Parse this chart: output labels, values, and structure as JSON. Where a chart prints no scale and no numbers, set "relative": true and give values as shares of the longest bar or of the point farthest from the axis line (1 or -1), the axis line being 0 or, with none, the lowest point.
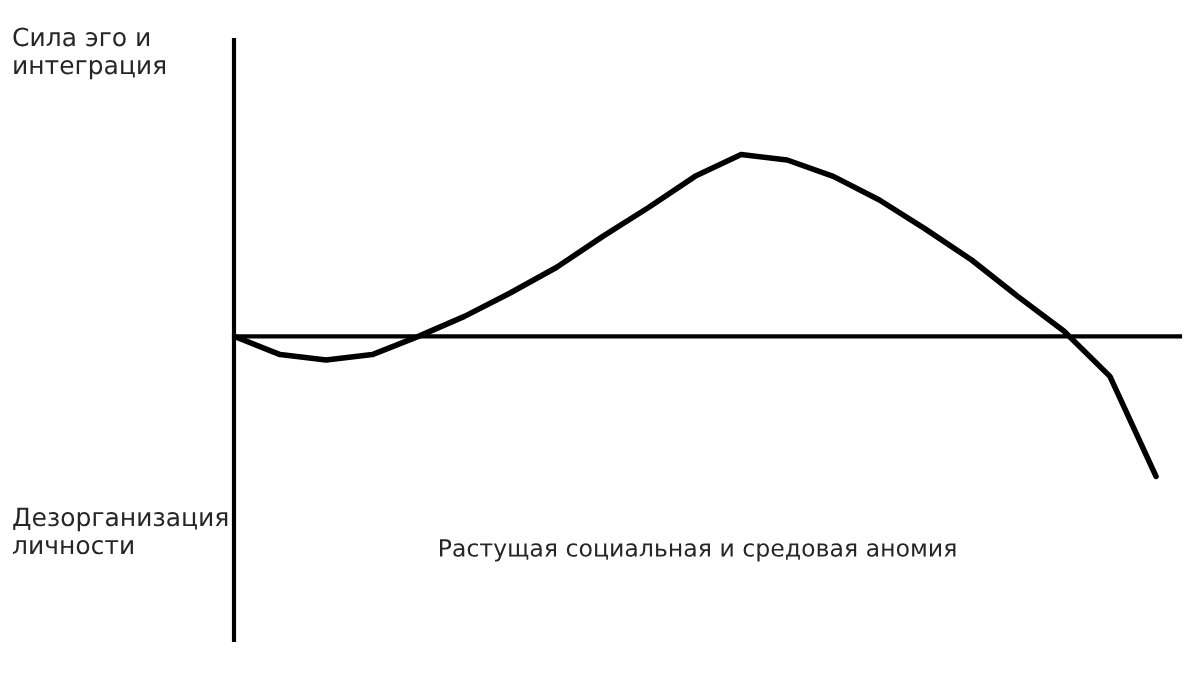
{
  "chart_data": {
    "type": "line",
    "relative": true,
    "xlabel": "Растущая социальная и средовая аномия",
    "annotations": [
      "Сила эго и\nинтеграция",
      "Дезорганизация\nличности"
    ],
    "categories": [
      null,
      null,
      null,
      null,
      null,
      null,
      null,
      null,
      null,
      null,
      null,
      null,
      null,
      null,
      null,
      null,
      null,
      null,
      null,
      null,
      null
    ],
    "series": [
      {
        "color": "#000000",
        "values": [
          0,
          -0.1,
          -0.13,
          -0.1,
          0,
          0.11,
          0.24,
          0.38,
          0.55,
          0.71,
          0.88,
          1,
          0.97,
          0.88,
          0.75,
          0.59,
          0.42,
          0.22,
          0.03,
          -0.22,
          -0.77
        ]
      }
    ],
    "legend": false
  }
}
